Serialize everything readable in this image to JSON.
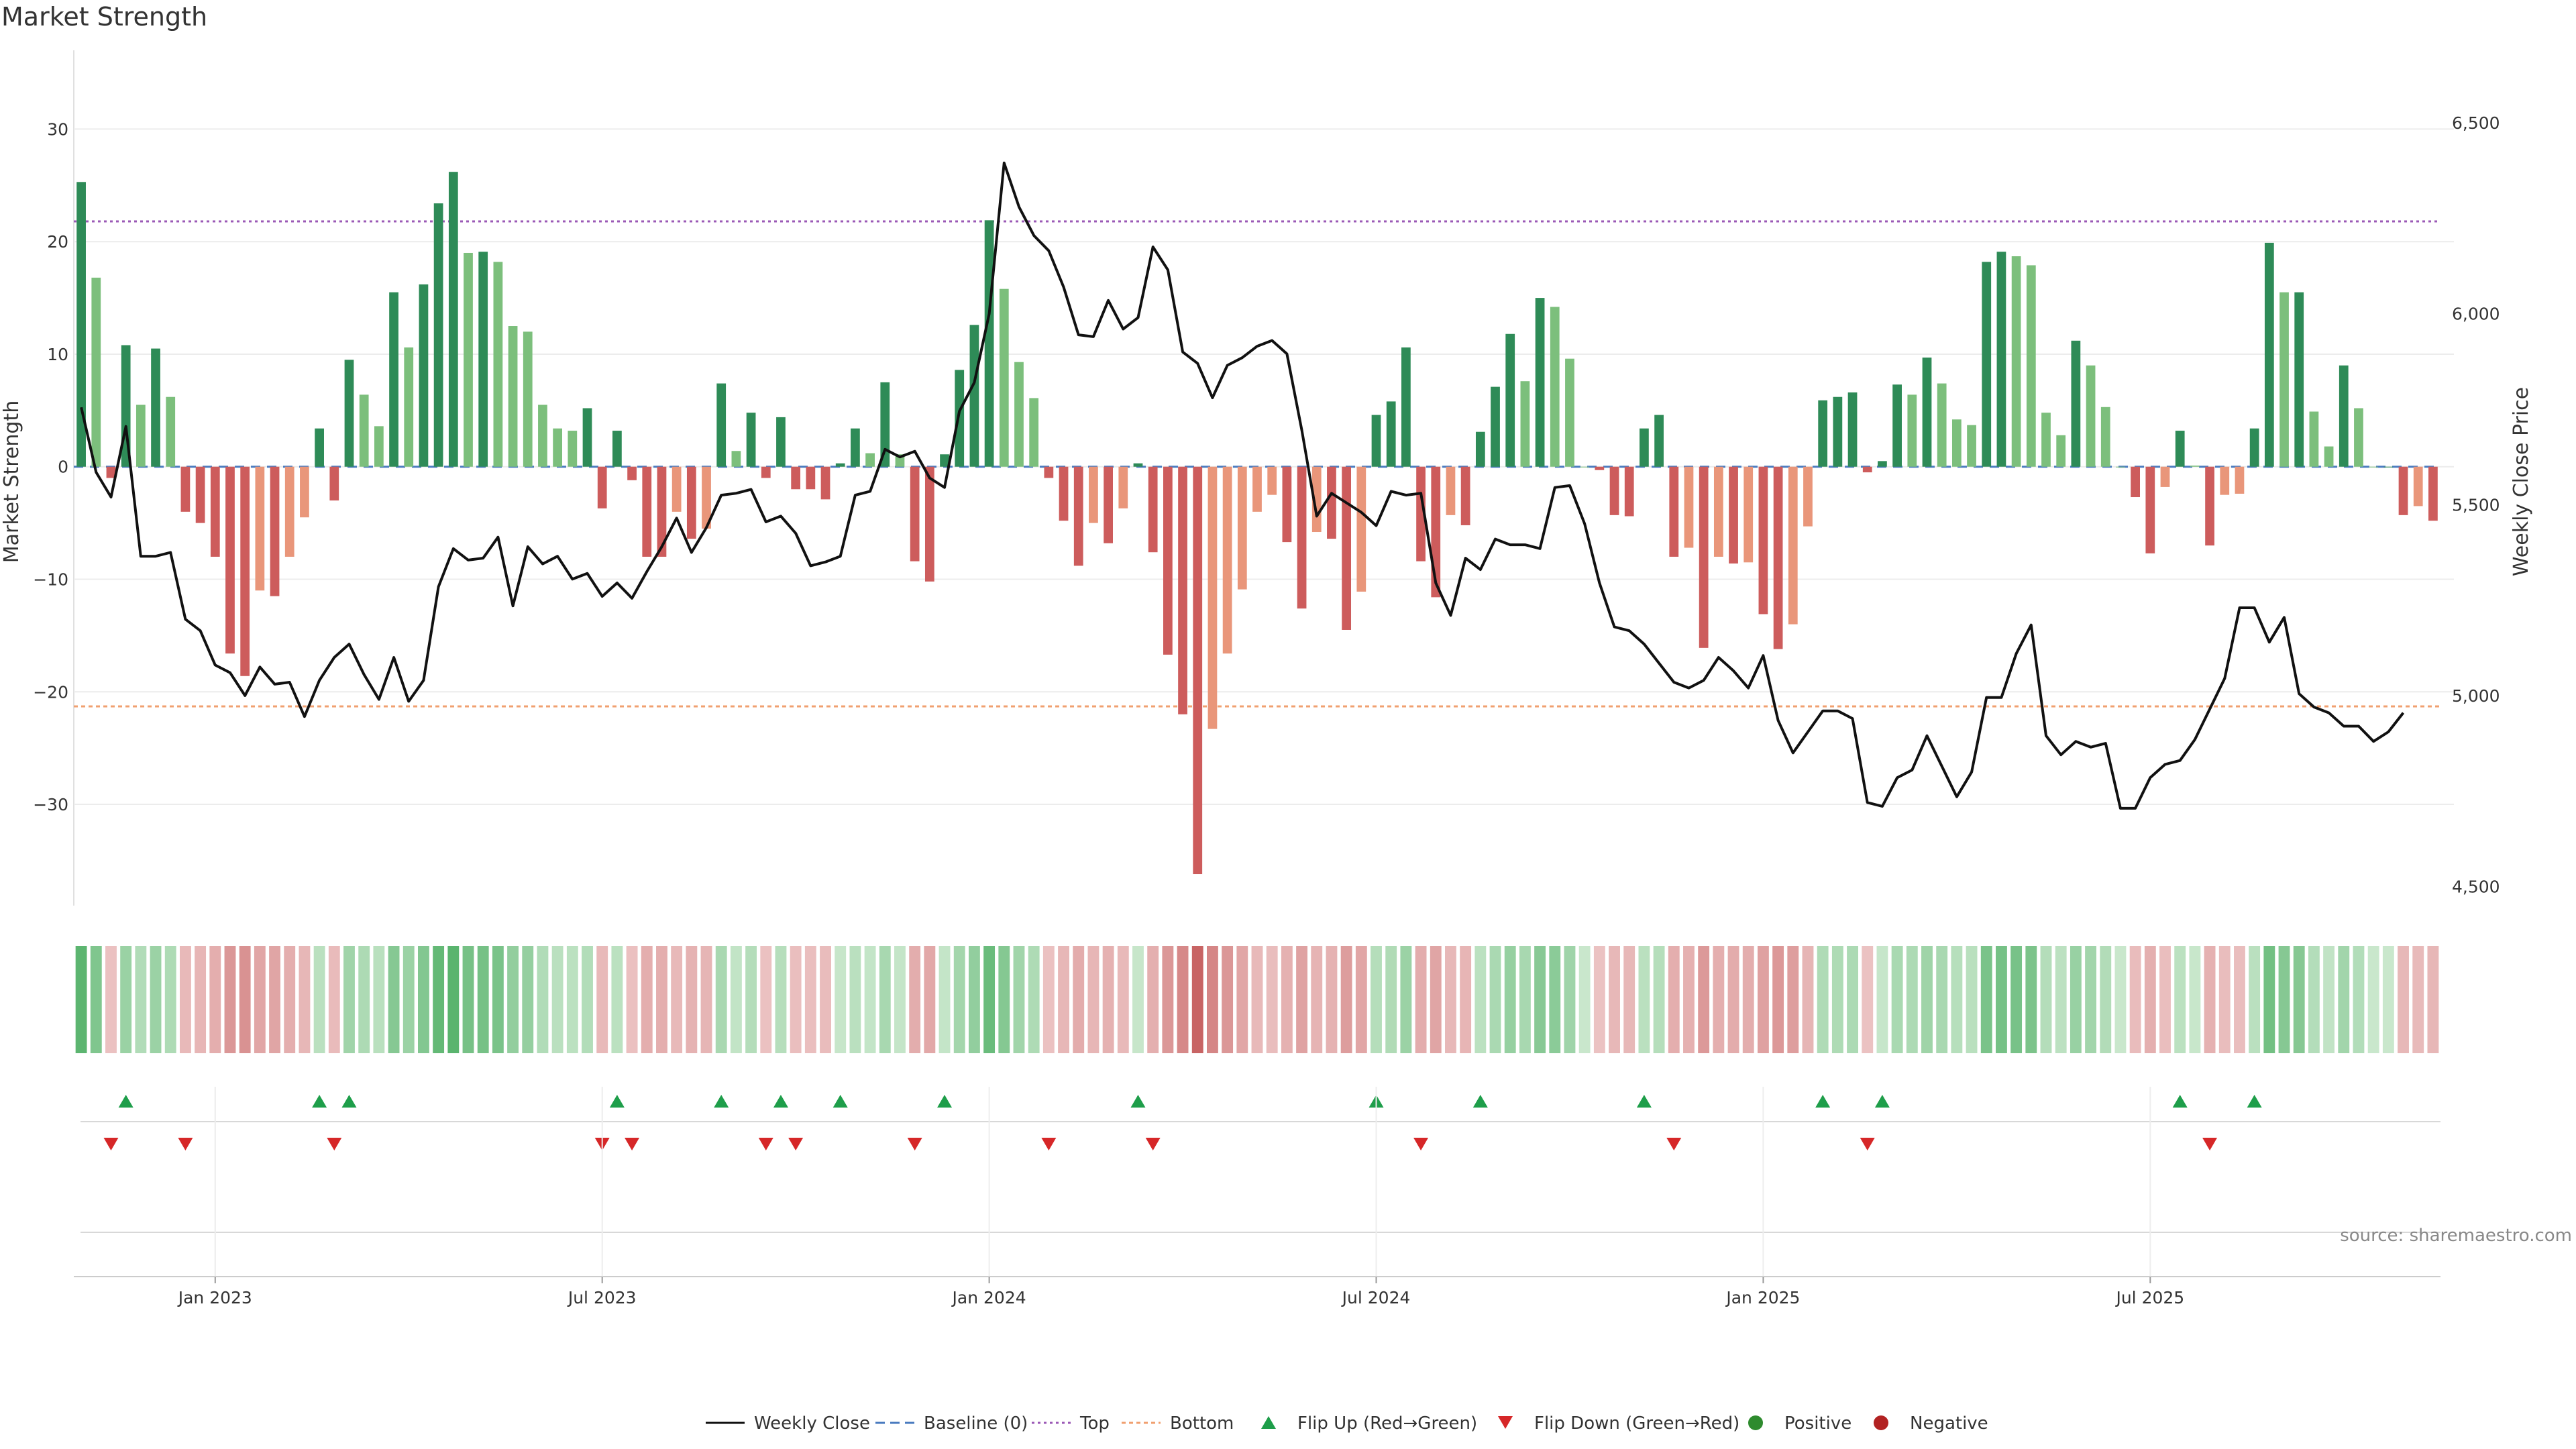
{
  "chart_data": {
    "type": "bar",
    "title": "Market Strength",
    "ylabel": "Market Strength",
    "y2label": "Weekly Close Price",
    "ylim": [
      -39,
      37
    ],
    "y2lim": [
      4450,
      6690
    ],
    "yticks": [
      30,
      20,
      10,
      0,
      -10,
      -20,
      -30
    ],
    "ytick_labels": [
      "30",
      "20",
      "10",
      "0",
      "−10",
      "−20",
      "−30"
    ],
    "y2ticks": [
      6500,
      6000,
      5500,
      5000,
      4500
    ],
    "y2tick_labels": [
      "6,500",
      "6,000",
      "5,500",
      "5,000",
      "4,500"
    ],
    "xticks": [
      {
        "index": 9,
        "label": "Jan 2023"
      },
      {
        "index": 35,
        "label": "Jul 2023"
      },
      {
        "index": 61,
        "label": "Jan 2024"
      },
      {
        "index": 87,
        "label": "Jul 2024"
      },
      {
        "index": 113,
        "label": "Jan 2025"
      },
      {
        "index": 139,
        "label": "Jul 2025"
      }
    ],
    "grid": true,
    "top_level": 21.8,
    "bottom_level": -21.3,
    "colors": {
      "positive_rising": "#2e8b57",
      "positive_falling": "#7cbf7c",
      "negative_deepening": "#cd5c5c",
      "negative_easing": "#e9967a",
      "price_line": "#111111",
      "top_line": "#9b59b6",
      "bottom_line": "#f0a070",
      "baseline": "#4a7bbf",
      "flip_up": "#1e9e4a",
      "flip_down": "#d62728",
      "positive_dot": "#2e8b2e",
      "negative_dot": "#b22222"
    },
    "strength": [
      25.3,
      16.8,
      -1,
      10.8,
      5.5,
      10.5,
      6.2,
      -4,
      -5,
      -8,
      -16.6,
      -18.6,
      -11,
      -11.5,
      -8,
      -4.5,
      3.4,
      -3,
      9.5,
      6.4,
      3.6,
      15.5,
      10.6,
      16.2,
      23.4,
      26.2,
      19,
      19.1,
      18.2,
      12.5,
      12,
      5.5,
      3.4,
      3.2,
      5.2,
      -3.7,
      3.2,
      -1.2,
      -8,
      -8,
      -4,
      -6.4,
      -5.5,
      7.4,
      1.4,
      4.8,
      -1,
      4.4,
      -2,
      -2,
      -2.9,
      0.3,
      3.4,
      1.2,
      7.5,
      1.1,
      -8.4,
      -10.2,
      1.1,
      8.6,
      12.6,
      21.9,
      15.8,
      9.3,
      6.1,
      -1,
      -4.8,
      -8.8,
      -5,
      -6.8,
      -3.7,
      0.3,
      -7.6,
      -16.7,
      -22,
      -36.2,
      -23.3,
      -16.6,
      -10.9,
      -4,
      -2.5,
      -6.7,
      -12.6,
      -5.8,
      -6.4,
      -14.5,
      -11.1,
      4.6,
      5.8,
      10.6,
      -8.4,
      -11.6,
      -4.3,
      -5.2,
      3.1,
      7.1,
      11.8,
      7.6,
      15,
      14.2,
      9.6,
      0,
      -0.3,
      -4.3,
      -4.4,
      3.4,
      4.6,
      -8,
      -7.2,
      -16.1,
      -8,
      -8.6,
      -8.5,
      -13.1,
      -16.2,
      -14,
      -5.3,
      5.9,
      6.2,
      6.6,
      -0.5,
      0.5,
      7.3,
      6.4,
      9.7,
      7.4,
      4.2,
      3.7,
      18.2,
      19.1,
      18.7,
      17.9,
      4.8,
      2.8,
      11.2,
      9,
      5.3,
      0,
      -2.7,
      -7.7,
      -1.8,
      3.2,
      0.1,
      -7,
      -2.5,
      -2.4,
      3.4,
      19.9,
      15.5,
      15.5,
      4.9,
      1.8,
      9,
      5.2,
      0,
      0,
      -4.3,
      -3.5,
      -4.8
    ],
    "weekly_close": [
      5755,
      5585,
      5520,
      5705,
      5365,
      5365,
      5375,
      5200,
      5170,
      5080,
      5060,
      5000,
      5075,
      5030,
      5035,
      4945,
      5040,
      5100,
      5135,
      5055,
      4990,
      5100,
      4985,
      5040,
      5285,
      5385,
      5355,
      5360,
      5415,
      5235,
      5390,
      5345,
      5365,
      5305,
      5320,
      5260,
      5295,
      5255,
      5325,
      5390,
      5465,
      5375,
      5440,
      5525,
      5530,
      5540,
      5455,
      5470,
      5425,
      5340,
      5350,
      5365,
      5525,
      5535,
      5645,
      5625,
      5640,
      5570,
      5545,
      5745,
      5820,
      6000,
      6395,
      6280,
      6205,
      6165,
      6070,
      5945,
      5940,
      6035,
      5960,
      5990,
      6175,
      6115,
      5900,
      5870,
      5780,
      5865,
      5885,
      5915,
      5930,
      5895,
      5695,
      5470,
      5530,
      5505,
      5480,
      5445,
      5535,
      5525,
      5530,
      5295,
      5210,
      5360,
      5330,
      5410,
      5395,
      5395,
      5385,
      5545,
      5550,
      5450,
      5295,
      5180,
      5170,
      5135,
      5085,
      5035,
      5020,
      5040,
      5100,
      5065,
      5020,
      5105,
      4935,
      4850,
      4905,
      4960,
      4960,
      4940,
      4720,
      4710,
      4785,
      4805,
      4895,
      4815,
      4735,
      4800,
      4995,
      4995,
      5110,
      5185,
      4895,
      4845,
      4880,
      4865,
      4875,
      4705,
      4705,
      4785,
      4820,
      4830,
      4885,
      4965,
      5045,
      5230,
      5230,
      5140,
      5205,
      5005,
      4970,
      4955,
      4920,
      4920,
      4880,
      4905,
      4955
    ]
  },
  "legend": {
    "items": [
      {
        "key": "weekly_close",
        "label": "Weekly Close",
        "icon": "line"
      },
      {
        "key": "baseline",
        "label": "Baseline (0)",
        "icon": "dashed-line"
      },
      {
        "key": "top",
        "label": "Top",
        "icon": "dotted-line"
      },
      {
        "key": "bottom",
        "label": "Bottom",
        "icon": "dotted-line"
      },
      {
        "key": "flip_up",
        "label": "Flip Up (Red→Green)",
        "icon": "triangle-up"
      },
      {
        "key": "flip_down",
        "label": "Flip Down (Green→Red)",
        "icon": "triangle-down"
      },
      {
        "key": "positive",
        "label": "Positive",
        "icon": "dot"
      },
      {
        "key": "negative",
        "label": "Negative",
        "icon": "dot"
      }
    ]
  },
  "source": "source: sharemaestro.com"
}
